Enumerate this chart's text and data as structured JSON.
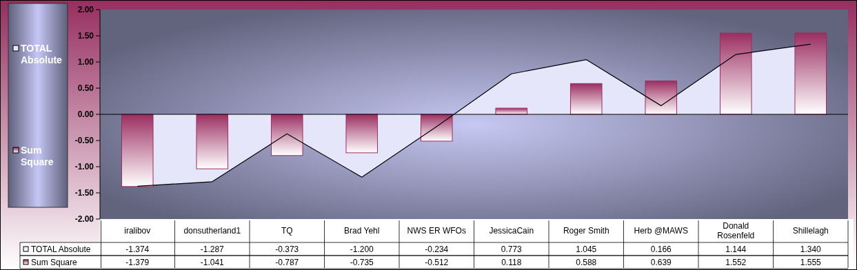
{
  "chart_data": {
    "type": "bar",
    "categories": [
      "iralibov",
      "donsutherland1",
      "TQ",
      "Brad Yehl",
      "NWS ER WFOs",
      "JessicaCain",
      "Roger Smith",
      "Herb @MAWS",
      "Donald Rosenfeld",
      "Shillelagh"
    ],
    "series": [
      {
        "name": "TOTAL Absolute",
        "type": "area",
        "color": "#e6e6fb",
        "values": [
          -1.374,
          -1.287,
          -0.373,
          -1.2,
          -0.234,
          0.773,
          1.045,
          0.166,
          1.144,
          1.34
        ],
        "value_labels": [
          "-1.374",
          "-1.287",
          "-0.373",
          "-1.200",
          "-0.234",
          "0.773",
          "1.045",
          "0.166",
          "1.144",
          "1.340"
        ]
      },
      {
        "name": "Sum Square",
        "color": "#9b2e61",
        "values": [
          -1.379,
          -1.041,
          -0.787,
          -0.735,
          -0.512,
          0.118,
          0.588,
          0.639,
          1.552,
          1.555
        ],
        "value_labels": [
          "-1.379",
          "-1.041",
          "-0.787",
          "-0.735",
          "-0.512",
          "0.118",
          "0.588",
          "0.639",
          "1.552",
          "1.555"
        ]
      }
    ],
    "ylim": [
      -2,
      2
    ],
    "yticks": [
      {
        "value": -2,
        "label": "-2.00"
      },
      {
        "value": -1.5,
        "label": "-1.50"
      },
      {
        "value": -1,
        "label": "-1.00"
      },
      {
        "value": -0.5,
        "label": "-0.50"
      },
      {
        "value": 0,
        "label": "0.00"
      },
      {
        "value": 0.5,
        "label": "0.50"
      },
      {
        "value": 1,
        "label": "1.00"
      },
      {
        "value": 1.5,
        "label": "1.50"
      },
      {
        "value": 2,
        "label": "2.00"
      }
    ],
    "legend": "left"
  }
}
